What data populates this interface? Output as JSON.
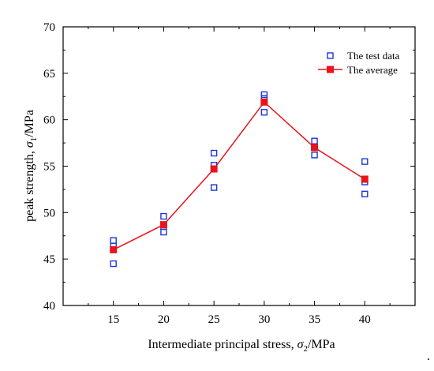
{
  "colors": {
    "test": "#1f35d6",
    "average": "#e8141b",
    "axis": "#000000"
  },
  "chart_data": {
    "type": "line",
    "title": "",
    "x_label": {
      "prefix": "Intermediate principal stress, ",
      "symbol": "σ",
      "sub": "2",
      "suffix": "/MPa"
    },
    "y_label": {
      "prefix": "peak strength, ",
      "symbol": "σ",
      "sub": "1",
      "suffix": "/MPa"
    },
    "xlim": [
      10,
      45
    ],
    "ylim": [
      40,
      70
    ],
    "x_ticks": [
      15,
      20,
      25,
      30,
      35,
      40
    ],
    "y_ticks": [
      40,
      45,
      50,
      55,
      60,
      65,
      70
    ],
    "legend_position": "top-right",
    "trailing_mark": ".",
    "series": [
      {
        "name": "The test data",
        "kind": "scatter",
        "marker": "open-square",
        "points": [
          [
            15,
            47.0
          ],
          [
            15,
            46.4
          ],
          [
            15,
            44.5
          ],
          [
            20,
            49.6
          ],
          [
            20,
            48.5
          ],
          [
            20,
            47.9
          ],
          [
            25,
            56.4
          ],
          [
            25,
            55.1
          ],
          [
            25,
            52.7
          ],
          [
            30,
            62.7
          ],
          [
            30,
            62.3
          ],
          [
            30,
            60.8
          ],
          [
            35,
            57.7
          ],
          [
            35,
            57.1
          ],
          [
            35,
            56.2
          ],
          [
            40,
            55.5
          ],
          [
            40,
            53.3
          ],
          [
            40,
            52.0
          ]
        ]
      },
      {
        "name": "The average",
        "kind": "line",
        "marker": "filled-square",
        "points": [
          [
            15,
            46.0
          ],
          [
            20,
            48.7
          ],
          [
            25,
            54.7
          ],
          [
            30,
            61.9
          ],
          [
            35,
            57.0
          ],
          [
            40,
            53.6
          ]
        ]
      }
    ]
  }
}
